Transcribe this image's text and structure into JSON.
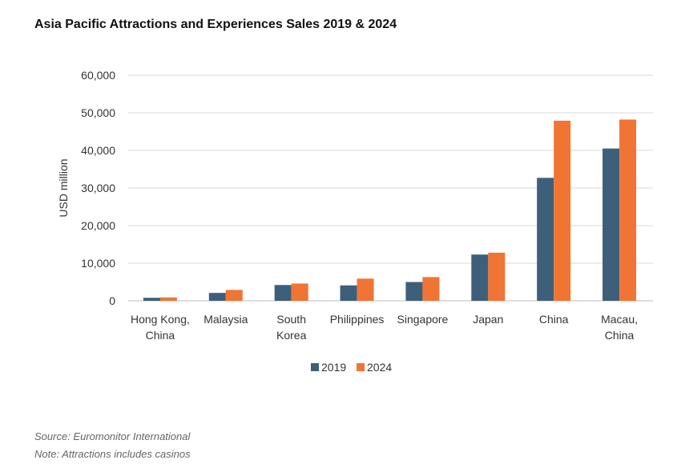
{
  "title": "Asia Pacific Attractions and Experiences Sales 2019 & 2024",
  "footer": {
    "source": "Source: Euromonitor International",
    "note": "Note: Attractions includes casinos"
  },
  "colors": {
    "series_2019": "#3E5F7A",
    "series_2024": "#F07535",
    "grid": "#D9D9D9"
  },
  "chart_data": {
    "type": "bar",
    "title": "Asia Pacific Attractions and Experiences Sales 2019 & 2024",
    "xlabel": "",
    "ylabel": "USD million",
    "ylim": [
      0,
      60000
    ],
    "yticks": [
      0,
      10000,
      20000,
      30000,
      40000,
      50000,
      60000
    ],
    "ytick_labels": [
      "0",
      "10,000",
      "20,000",
      "30,000",
      "40,000",
      "50,000",
      "60,000"
    ],
    "grid": true,
    "legend_position": "bottom",
    "categories": [
      "Hong Kong, China",
      "Malaysia",
      "South Korea",
      "Philippines",
      "Singapore",
      "Japan",
      "China",
      "Macau, China"
    ],
    "category_lines": [
      [
        "Hong Kong,",
        "China"
      ],
      [
        "Malaysia"
      ],
      [
        "South",
        "Korea"
      ],
      [
        "Philippines"
      ],
      [
        "Singapore"
      ],
      [
        "Japan"
      ],
      [
        "China"
      ],
      [
        "Macau,",
        "China"
      ]
    ],
    "series": [
      {
        "name": "2019",
        "color": "#3E5F7A",
        "values": [
          800,
          2100,
          4200,
          4100,
          5000,
          12300,
          32700,
          40500
        ]
      },
      {
        "name": "2024",
        "color": "#F07535",
        "values": [
          900,
          2900,
          4600,
          5900,
          6300,
          12800,
          47900,
          48200
        ]
      }
    ]
  }
}
